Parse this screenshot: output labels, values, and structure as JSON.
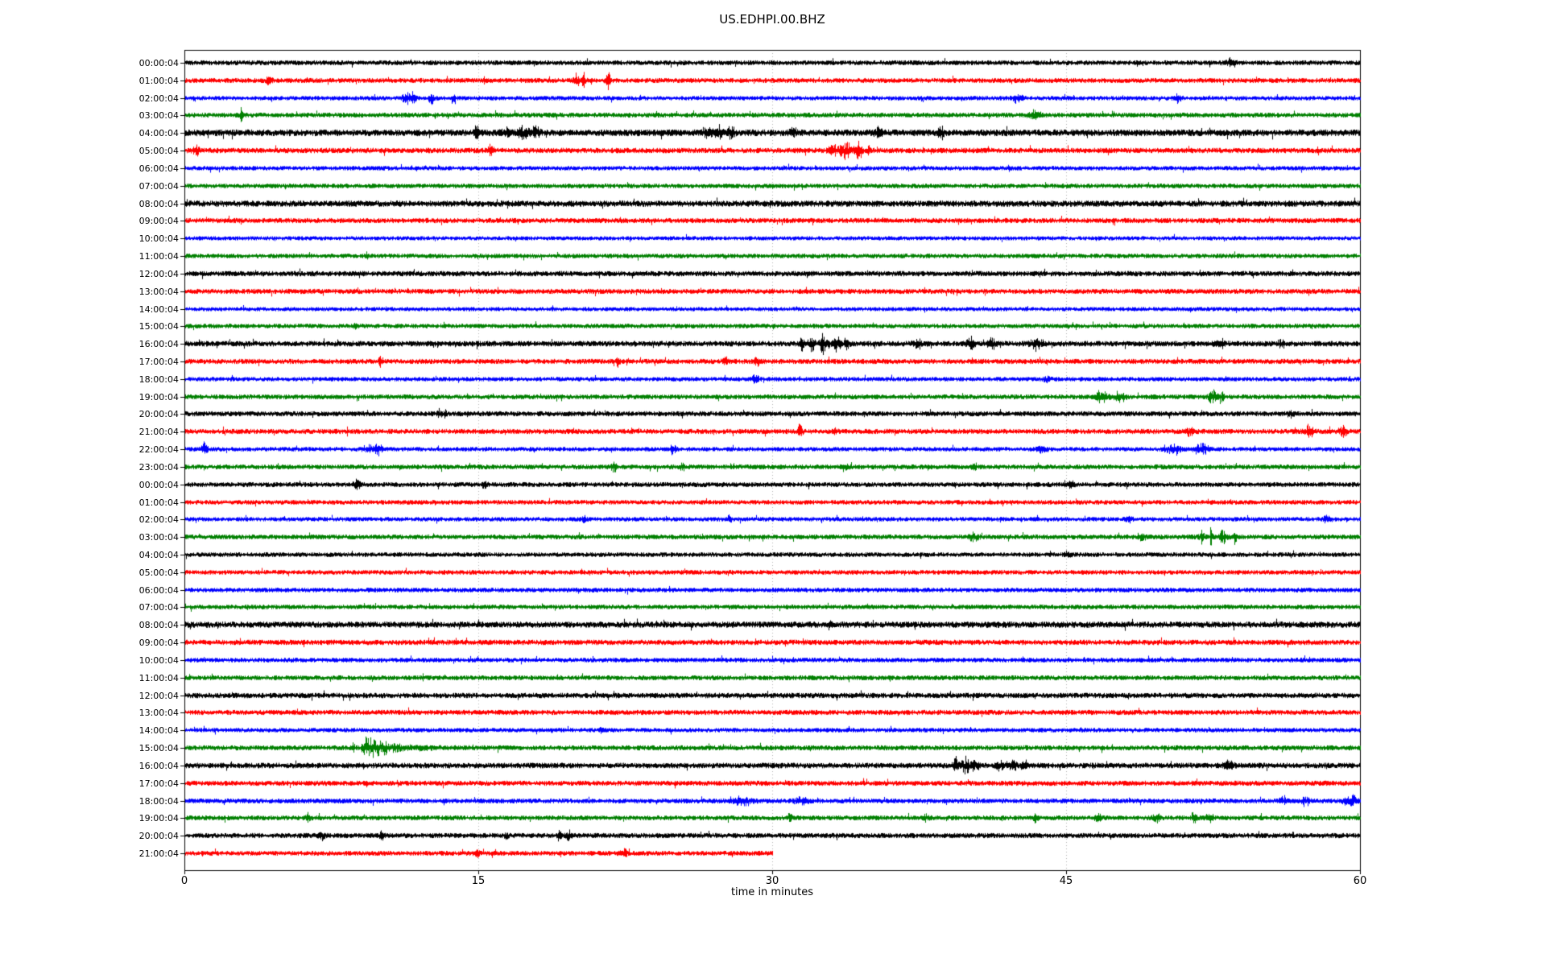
{
  "chart_data": {
    "type": "line",
    "subtype": "helicorder-dayplot",
    "title": "US.EDHPI.00.BHZ",
    "xlabel": "time in minutes",
    "x_range": [
      0,
      60
    ],
    "x_ticks": [
      {
        "value": 0,
        "label": "0"
      },
      {
        "value": 15,
        "label": "15"
      },
      {
        "value": 30,
        "label": "30"
      },
      {
        "value": 45,
        "label": "45"
      },
      {
        "value": 60,
        "label": "60"
      }
    ],
    "grid": true,
    "grid_x": [
      15,
      30,
      45
    ],
    "palette": {
      "black": "#000000",
      "red": "#ff0000",
      "blue": "#0000ff",
      "green": "#008000",
      "grid": "#b0b0b0",
      "frame": "#000000",
      "text": "#000000"
    },
    "rows": [
      {
        "label": "00:00:04",
        "color": "black",
        "base": 2.2,
        "end": 1,
        "events": [
          {
            "m": 53.4,
            "w": 0.3,
            "a": 3
          }
        ]
      },
      {
        "label": "01:00:04",
        "color": "red",
        "base": 2.2,
        "end": 1,
        "events": [
          {
            "m": 4.3,
            "w": 0.15,
            "a": 3
          },
          {
            "m": 15.3,
            "w": 0.1,
            "a": 2.5
          },
          {
            "m": 20.0,
            "w": 0.12,
            "a": 7
          },
          {
            "m": 20.35,
            "w": 0.1,
            "a": 6
          },
          {
            "m": 21.6,
            "w": 0.12,
            "a": 7
          }
        ]
      },
      {
        "label": "02:00:04",
        "color": "blue",
        "base": 2.0,
        "end": 1,
        "events": [
          {
            "m": 11.3,
            "w": 0.2,
            "a": 5
          },
          {
            "m": 11.7,
            "w": 0.12,
            "a": 6
          },
          {
            "m": 12.6,
            "w": 0.15,
            "a": 4
          },
          {
            "m": 13.7,
            "w": 0.12,
            "a": 4
          },
          {
            "m": 42.5,
            "w": 0.25,
            "a": 4
          },
          {
            "m": 50.7,
            "w": 0.2,
            "a": 3.5
          }
        ]
      },
      {
        "label": "03:00:04",
        "color": "green",
        "base": 2.2,
        "end": 1,
        "events": [
          {
            "m": 2.9,
            "w": 0.05,
            "a": 9
          },
          {
            "m": 43.4,
            "w": 0.3,
            "a": 3.5
          }
        ]
      },
      {
        "label": "04:00:04",
        "color": "black",
        "base": 3.0,
        "end": 1,
        "events": [
          {
            "m": 14.9,
            "w": 0.12,
            "a": 6
          },
          {
            "m": 16.4,
            "w": 0.2,
            "a": 4
          },
          {
            "m": 17.3,
            "w": 0.3,
            "a": 5
          },
          {
            "m": 17.9,
            "w": 0.2,
            "a": 5
          },
          {
            "m": 26.7,
            "w": 0.25,
            "a": 6
          },
          {
            "m": 27.3,
            "w": 0.2,
            "a": 5
          },
          {
            "m": 27.9,
            "w": 0.2,
            "a": 4
          },
          {
            "m": 31.1,
            "w": 0.2,
            "a": 3
          },
          {
            "m": 35.4,
            "w": 0.2,
            "a": 5
          },
          {
            "m": 38.6,
            "w": 0.2,
            "a": 4
          }
        ]
      },
      {
        "label": "05:00:04",
        "color": "red",
        "base": 2.4,
        "end": 1,
        "events": [
          {
            "m": 0.6,
            "w": 0.2,
            "a": 3.5
          },
          {
            "m": 15.6,
            "w": 0.15,
            "a": 6
          },
          {
            "m": 33.2,
            "w": 0.3,
            "a": 5
          },
          {
            "m": 33.8,
            "w": 0.25,
            "a": 7
          },
          {
            "m": 34.4,
            "w": 0.2,
            "a": 6
          },
          {
            "m": 34.9,
            "w": 0.15,
            "a": 4
          }
        ]
      },
      {
        "label": "06:00:04",
        "color": "blue",
        "base": 2.0,
        "end": 1,
        "events": []
      },
      {
        "label": "07:00:04",
        "color": "green",
        "base": 2.1,
        "end": 1,
        "events": []
      },
      {
        "label": "08:00:04",
        "color": "black",
        "base": 2.8,
        "end": 1,
        "events": []
      },
      {
        "label": "09:00:04",
        "color": "red",
        "base": 2.3,
        "end": 1,
        "events": []
      },
      {
        "label": "10:00:04",
        "color": "blue",
        "base": 1.9,
        "end": 1,
        "events": []
      },
      {
        "label": "11:00:04",
        "color": "green",
        "base": 2.1,
        "end": 1,
        "events": []
      },
      {
        "label": "12:00:04",
        "color": "black",
        "base": 2.4,
        "end": 1,
        "events": []
      },
      {
        "label": "13:00:04",
        "color": "red",
        "base": 2.3,
        "end": 1,
        "events": []
      },
      {
        "label": "14:00:04",
        "color": "blue",
        "base": 1.9,
        "end": 1,
        "events": []
      },
      {
        "label": "15:00:04",
        "color": "green",
        "base": 2.1,
        "end": 1,
        "events": [
          {
            "m": 8.7,
            "w": 0.1,
            "a": 3
          }
        ]
      },
      {
        "label": "16:00:04",
        "color": "black",
        "base": 2.5,
        "end": 1,
        "events": [
          {
            "m": 31.5,
            "w": 0.12,
            "a": 6
          },
          {
            "m": 32.0,
            "w": 0.15,
            "a": 9
          },
          {
            "m": 32.6,
            "w": 0.2,
            "a": 7
          },
          {
            "m": 33.3,
            "w": 0.2,
            "a": 6
          },
          {
            "m": 33.8,
            "w": 0.12,
            "a": 5
          },
          {
            "m": 37.4,
            "w": 0.2,
            "a": 4
          },
          {
            "m": 40.1,
            "w": 0.25,
            "a": 5
          },
          {
            "m": 41.2,
            "w": 0.2,
            "a": 4
          },
          {
            "m": 43.5,
            "w": 0.3,
            "a": 5
          },
          {
            "m": 52.9,
            "w": 0.25,
            "a": 4
          },
          {
            "m": 56.0,
            "w": 0.2,
            "a": 3.5
          }
        ]
      },
      {
        "label": "17:00:04",
        "color": "red",
        "base": 2.3,
        "end": 1,
        "events": [
          {
            "m": 10.0,
            "w": 0.12,
            "a": 3.5
          },
          {
            "m": 22.1,
            "w": 0.12,
            "a": 4
          },
          {
            "m": 27.6,
            "w": 0.12,
            "a": 5
          },
          {
            "m": 29.2,
            "w": 0.12,
            "a": 4
          }
        ]
      },
      {
        "label": "18:00:04",
        "color": "blue",
        "base": 2.0,
        "end": 1,
        "events": [
          {
            "m": 29.1,
            "w": 0.2,
            "a": 3
          },
          {
            "m": 44.0,
            "w": 0.2,
            "a": 2.5
          }
        ]
      },
      {
        "label": "19:00:04",
        "color": "green",
        "base": 2.2,
        "end": 1,
        "events": [
          {
            "m": 46.6,
            "w": 0.1,
            "a": 8
          },
          {
            "m": 47.0,
            "w": 0.2,
            "a": 5
          },
          {
            "m": 47.6,
            "w": 0.15,
            "a": 5
          },
          {
            "m": 48.0,
            "w": 0.12,
            "a": 4
          },
          {
            "m": 52.5,
            "w": 0.2,
            "a": 6
          },
          {
            "m": 52.9,
            "w": 0.12,
            "a": 5
          }
        ]
      },
      {
        "label": "20:00:04",
        "color": "black",
        "base": 2.3,
        "end": 1,
        "events": [
          {
            "m": 13.0,
            "w": 0.1,
            "a": 5
          },
          {
            "m": 13.3,
            "w": 0.08,
            "a": 4
          },
          {
            "m": 56.5,
            "w": 0.2,
            "a": 3
          }
        ]
      },
      {
        "label": "21:00:04",
        "color": "red",
        "base": 2.3,
        "end": 1,
        "events": [
          {
            "m": 31.4,
            "w": 0.12,
            "a": 5
          },
          {
            "m": 33.2,
            "w": 0.12,
            "a": 3
          },
          {
            "m": 51.3,
            "w": 0.18,
            "a": 4
          },
          {
            "m": 57.4,
            "w": 0.18,
            "a": 6
          },
          {
            "m": 59.1,
            "w": 0.2,
            "a": 5
          }
        ]
      },
      {
        "label": "22:00:04",
        "color": "blue",
        "base": 2.0,
        "end": 1,
        "events": [
          {
            "m": 1.0,
            "w": 0.15,
            "a": 5
          },
          {
            "m": 9.4,
            "w": 0.25,
            "a": 4
          },
          {
            "m": 9.9,
            "w": 0.15,
            "a": 5
          },
          {
            "m": 24.9,
            "w": 0.18,
            "a": 3.5
          },
          {
            "m": 43.7,
            "w": 0.2,
            "a": 3
          },
          {
            "m": 50.5,
            "w": 0.45,
            "a": 4
          },
          {
            "m": 51.9,
            "w": 0.35,
            "a": 5
          }
        ]
      },
      {
        "label": "23:00:04",
        "color": "green",
        "base": 2.2,
        "end": 1,
        "events": [
          {
            "m": 21.9,
            "w": 0.18,
            "a": 3.5
          },
          {
            "m": 25.4,
            "w": 0.12,
            "a": 3
          },
          {
            "m": 33.7,
            "w": 0.18,
            "a": 4
          },
          {
            "m": 40.3,
            "w": 0.15,
            "a": 3
          }
        ]
      },
      {
        "label": "00:00:04",
        "color": "black",
        "base": 2.2,
        "end": 1,
        "events": [
          {
            "m": 8.8,
            "w": 0.18,
            "a": 4
          },
          {
            "m": 15.3,
            "w": 0.12,
            "a": 3
          },
          {
            "m": 45.2,
            "w": 0.25,
            "a": 2.5
          }
        ]
      },
      {
        "label": "01:00:04",
        "color": "red",
        "base": 2.1,
        "end": 1,
        "events": []
      },
      {
        "label": "02:00:04",
        "color": "blue",
        "base": 2.0,
        "end": 1,
        "events": [
          {
            "m": 20.4,
            "w": 0.12,
            "a": 4
          },
          {
            "m": 27.8,
            "w": 0.12,
            "a": 3.5
          },
          {
            "m": 48.2,
            "w": 0.18,
            "a": 3
          },
          {
            "m": 58.3,
            "w": 0.2,
            "a": 3
          }
        ]
      },
      {
        "label": "03:00:04",
        "color": "green",
        "base": 2.2,
        "end": 1,
        "events": [
          {
            "m": 40.3,
            "w": 0.25,
            "a": 3.5
          },
          {
            "m": 48.9,
            "w": 0.2,
            "a": 3
          },
          {
            "m": 51.9,
            "w": 0.12,
            "a": 5
          },
          {
            "m": 52.4,
            "w": 0.08,
            "a": 9
          },
          {
            "m": 53.0,
            "w": 0.2,
            "a": 6
          },
          {
            "m": 53.6,
            "w": 0.08,
            "a": 7
          }
        ]
      },
      {
        "label": "04:00:04",
        "color": "black",
        "base": 2.1,
        "end": 1,
        "events": [
          {
            "m": 45.1,
            "w": 0.2,
            "a": 2.5
          }
        ]
      },
      {
        "label": "05:00:04",
        "color": "red",
        "base": 2.1,
        "end": 1,
        "events": []
      },
      {
        "label": "06:00:04",
        "color": "blue",
        "base": 2.1,
        "end": 1,
        "events": []
      },
      {
        "label": "07:00:04",
        "color": "green",
        "base": 2.1,
        "end": 1,
        "events": []
      },
      {
        "label": "08:00:04",
        "color": "black",
        "base": 2.8,
        "end": 1,
        "events": [
          {
            "m": 32.9,
            "w": 0.1,
            "a": 2.5
          }
        ]
      },
      {
        "label": "09:00:04",
        "color": "red",
        "base": 2.4,
        "end": 1,
        "events": []
      },
      {
        "label": "10:00:04",
        "color": "blue",
        "base": 2.1,
        "end": 1,
        "events": []
      },
      {
        "label": "11:00:04",
        "color": "green",
        "base": 2.2,
        "end": 1,
        "events": []
      },
      {
        "label": "12:00:04",
        "color": "black",
        "base": 2.4,
        "end": 1,
        "events": []
      },
      {
        "label": "13:00:04",
        "color": "red",
        "base": 2.3,
        "end": 1,
        "events": []
      },
      {
        "label": "14:00:04",
        "color": "blue",
        "base": 2.0,
        "end": 1,
        "events": [
          {
            "m": 21.3,
            "w": 0.1,
            "a": 3.5
          }
        ]
      },
      {
        "label": "15:00:04",
        "color": "green",
        "base": 2.3,
        "end": 1,
        "events": [
          {
            "m": 8.6,
            "w": 0.1,
            "a": 3
          },
          {
            "m": 9.3,
            "w": 0.2,
            "a": 9,
            "tau": 1.2
          }
        ]
      },
      {
        "label": "16:00:04",
        "color": "black",
        "base": 2.5,
        "end": 1,
        "events": [
          {
            "m": 39.3,
            "w": 0.12,
            "a": 8
          },
          {
            "m": 39.8,
            "w": 0.25,
            "a": 7
          },
          {
            "m": 40.3,
            "w": 0.18,
            "a": 5
          },
          {
            "m": 41.6,
            "w": 0.2,
            "a": 4
          },
          {
            "m": 42.3,
            "w": 0.25,
            "a": 4
          },
          {
            "m": 42.9,
            "w": 0.18,
            "a": 4
          },
          {
            "m": 53.3,
            "w": 0.25,
            "a": 4
          }
        ]
      },
      {
        "label": "17:00:04",
        "color": "red",
        "base": 2.3,
        "end": 1,
        "events": []
      },
      {
        "label": "18:00:04",
        "color": "blue",
        "base": 2.2,
        "end": 1,
        "events": [
          {
            "m": 28.5,
            "w": 0.5,
            "a": 3
          },
          {
            "m": 31.5,
            "w": 0.35,
            "a": 3
          },
          {
            "m": 56.1,
            "w": 0.2,
            "a": 3
          },
          {
            "m": 57.2,
            "w": 0.18,
            "a": 4
          },
          {
            "m": 59.5,
            "w": 0.3,
            "a": 5
          }
        ]
      },
      {
        "label": "19:00:04",
        "color": "green",
        "base": 2.2,
        "end": 1,
        "events": [
          {
            "m": 6.3,
            "w": 0.12,
            "a": 3
          },
          {
            "m": 30.9,
            "w": 0.18,
            "a": 2.5
          },
          {
            "m": 37.9,
            "w": 0.18,
            "a": 3
          },
          {
            "m": 43.4,
            "w": 0.18,
            "a": 3
          },
          {
            "m": 46.6,
            "w": 0.18,
            "a": 3
          },
          {
            "m": 49.6,
            "w": 0.18,
            "a": 3
          },
          {
            "m": 51.5,
            "w": 0.12,
            "a": 5
          },
          {
            "m": 52.3,
            "w": 0.18,
            "a": 3
          }
        ]
      },
      {
        "label": "20:00:04",
        "color": "black",
        "base": 2.3,
        "end": 1,
        "events": [
          {
            "m": 7.0,
            "w": 0.18,
            "a": 3
          },
          {
            "m": 10.1,
            "w": 0.12,
            "a": 4
          },
          {
            "m": 16.4,
            "w": 0.1,
            "a": 3
          },
          {
            "m": 19.1,
            "w": 0.12,
            "a": 5
          },
          {
            "m": 19.6,
            "w": 0.12,
            "a": 4
          }
        ]
      },
      {
        "label": "21:00:04",
        "color": "red",
        "base": 2.2,
        "end": 0.5,
        "events": [
          {
            "m": 14.9,
            "w": 0.12,
            "a": 3
          },
          {
            "m": 22.4,
            "w": 0.18,
            "a": 4
          }
        ]
      }
    ]
  }
}
